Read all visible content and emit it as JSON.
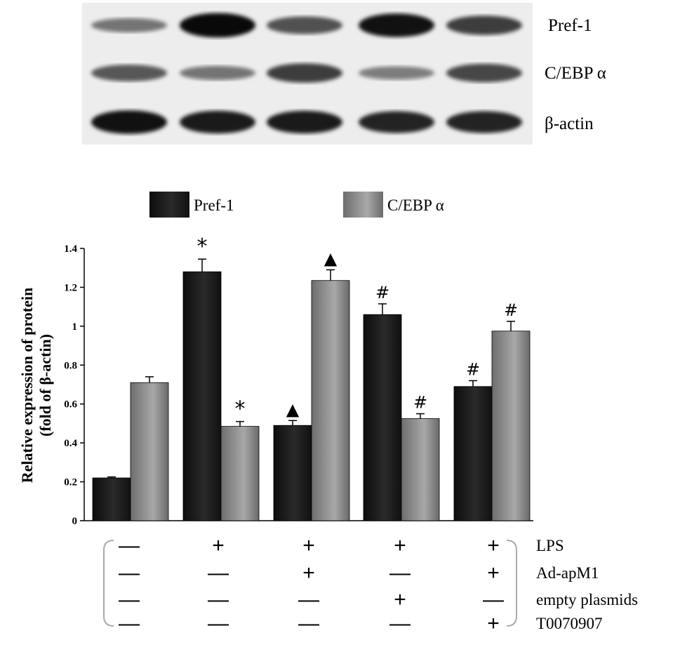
{
  "blot": {
    "rows": [
      {
        "label": "Pref-1",
        "intensity": [
          0.35,
          0.95,
          0.55,
          0.9,
          0.65
        ]
      },
      {
        "label": "C/EBP α",
        "intensity": [
          0.5,
          0.35,
          0.65,
          0.3,
          0.6
        ]
      },
      {
        "label": "β-actin",
        "intensity": [
          0.9,
          0.85,
          0.85,
          0.8,
          0.8
        ]
      }
    ]
  },
  "chart_data": {
    "type": "bar",
    "ylabel_line1": "Relative expression of protein",
    "ylabel_line2": "(fold of β-actin)",
    "ylim": [
      0,
      1.4
    ],
    "yticks": [
      "0",
      "0.2",
      "0.4",
      "0.6",
      "0.8",
      "1",
      "1.2",
      "1.4"
    ],
    "legend_position": "top",
    "series": [
      {
        "name": "Pref-1",
        "color": "#1a1a1a",
        "values": [
          0.22,
          1.28,
          0.49,
          1.06,
          0.69
        ],
        "errors": [
          0.005,
          0.065,
          0.025,
          0.055,
          0.03
        ],
        "markers": [
          "",
          "*",
          "▲",
          "#",
          "#"
        ]
      },
      {
        "name": "C/EBP α",
        "color": "#8a8a8a",
        "values": [
          0.71,
          0.485,
          1.235,
          0.525,
          0.975
        ],
        "errors": [
          0.03,
          0.025,
          0.055,
          0.025,
          0.05
        ],
        "markers": [
          "",
          "*",
          "▲",
          "#",
          "#"
        ]
      }
    ]
  },
  "conditions": {
    "rows": [
      {
        "label": "LPS",
        "signs": [
          "—",
          "+",
          "+",
          "+",
          "+"
        ]
      },
      {
        "label": "Ad-apM1",
        "signs": [
          "—",
          "—",
          "+",
          "—",
          "+"
        ]
      },
      {
        "label": "empty plasmids",
        "signs": [
          "—",
          "—",
          "—",
          "+",
          "—"
        ]
      },
      {
        "label": "T0070907",
        "signs": [
          "—",
          "—",
          "—",
          "—",
          "+"
        ]
      }
    ]
  }
}
